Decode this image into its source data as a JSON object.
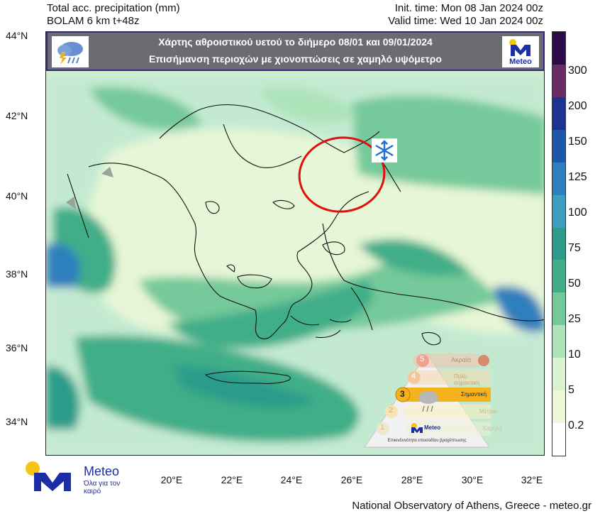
{
  "header": {
    "product": "Total acc. precipitation (mm)",
    "model": "BOLAM 6 km t+48z",
    "init_time": "Init. time: Mon 08 Jan 2024 00z",
    "valid_time": "Valid time: Wed 10 Jan 2024 00z"
  },
  "banner": {
    "line1": "Χάρτης αθροιστικού  υετού το διήμερο 08/01 και 09/01/2024",
    "line2": "Επισήμανση περιοχών με χιονοπτώσεις σε χαμηλό υψόμετρο",
    "weather_icon": "rain-lightning-cloud-icon",
    "logo_text": "Meteo"
  },
  "axes": {
    "lat_labels": [
      "44°N",
      "42°N",
      "40°N",
      "38°N",
      "36°N",
      "34°N"
    ],
    "lon_labels": [
      "20°E",
      "22°E",
      "24°E",
      "26°E",
      "28°E",
      "30°E",
      "32°E"
    ]
  },
  "legend": {
    "levels": [
      "300",
      "200",
      "150",
      "125",
      "100",
      "75",
      "50",
      "25",
      "10",
      "5",
      "0.2"
    ],
    "colors": [
      "#2b0a4a",
      "#6a2d63",
      "#1c3391",
      "#1f57a8",
      "#2e7fbd",
      "#3d9ebf",
      "#2b9d8a",
      "#3fae88",
      "#74c99a",
      "#aee3ba",
      "#d9f2cf",
      "#eef8d8",
      "#ffffff"
    ]
  },
  "annotations": {
    "snow_icon": "snowflake-icon",
    "highlight": "red-ellipse-thrace"
  },
  "hazard_badge": {
    "levels": [
      {
        "num": "5",
        "label": "Ακραία"
      },
      {
        "num": "4",
        "label": "Πολύ σημαντική"
      },
      {
        "num": "3",
        "label": "Σημαντική"
      },
      {
        "num": "2",
        "label": "Μέτρια"
      },
      {
        "num": "1",
        "label": "Χαμηλή"
      }
    ],
    "active_level": "3",
    "brand": "Meteo",
    "caption": "Επικινδυνότητα επεισοδίου βροχόπτωσης"
  },
  "footer_logo": {
    "name": "Meteo",
    "slogan": "Όλα για τον καιρό"
  },
  "footer": {
    "credit": "National Observatory of Athens, Greece - meteo.gr"
  }
}
